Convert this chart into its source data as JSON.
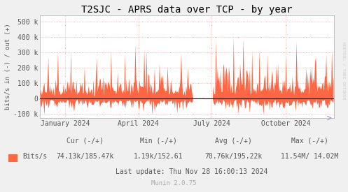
{
  "title": "T2SJC - APRS data over TCP - by year",
  "ylabel": "bits/s in (-) / out (+)",
  "bg_color": "#f0f0f0",
  "plot_bg_color": "#ffffff",
  "fill_color": "#ff6644",
  "line_color": "#000000",
  "grid_color": "#ff9999",
  "axis_color": "#aaaaaa",
  "yticks": [
    -100000,
    0,
    100000,
    200000,
    300000,
    400000,
    500000
  ],
  "ytick_labels": [
    "-100 k",
    "0",
    "100 k",
    "200 k",
    "300 k",
    "400 k",
    "500 k"
  ],
  "ylim": [
    -130000,
    540000
  ],
  "xlim_start": 0,
  "xlim_end": 365,
  "xtick_positions": [
    31,
    122,
    213,
    305
  ],
  "xtick_labels": [
    "January 2024",
    "April 2024",
    "July 2024",
    "October 2024"
  ],
  "legend_label": "Bits/s",
  "legend_color": "#ff6644",
  "cur_label": "Cur (-/+)",
  "cur_value": "74.13k/185.47k",
  "min_label": "Min (-/+)",
  "min_value": "1.19k/152.61",
  "avg_label": "Avg (-/+)",
  "avg_value": "70.76k/195.22k",
  "max_label": "Max (-/+)",
  "max_value": "11.54M/ 14.02M",
  "last_update": "Last update: Thu Nov 28 16:00:13 2024",
  "munin_version": "Munin 2.0.75",
  "rrdtool_label": "RRDTOOL / TOBI OETIKER",
  "title_fontsize": 10,
  "tick_fontsize": 7,
  "footer_fontsize": 7
}
